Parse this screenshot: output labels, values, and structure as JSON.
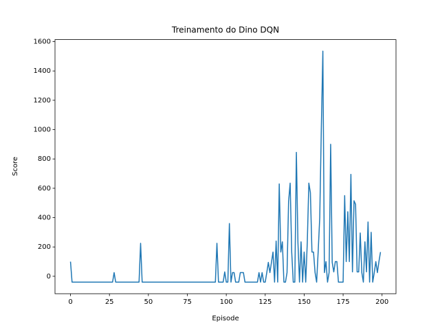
{
  "chart_data": {
    "type": "line",
    "title": "Treinamento do Dino DQN",
    "x_label": "Episode",
    "y_label": "Score",
    "xlim": [
      -9.95,
      208.95
    ],
    "ylim": [
      -118.75,
      1613.75
    ],
    "xticks": [
      0,
      25,
      50,
      75,
      100,
      125,
      150,
      175,
      200
    ],
    "yticks": [
      0,
      200,
      400,
      600,
      800,
      1000,
      1200,
      1400,
      1600
    ],
    "x": [
      0,
      1,
      2,
      3,
      4,
      5,
      6,
      7,
      8,
      9,
      10,
      11,
      12,
      13,
      14,
      15,
      16,
      17,
      18,
      19,
      20,
      21,
      22,
      23,
      24,
      25,
      26,
      27,
      28,
      29,
      30,
      31,
      32,
      33,
      34,
      35,
      36,
      37,
      38,
      39,
      40,
      41,
      42,
      43,
      44,
      45,
      46,
      47,
      48,
      49,
      50,
      51,
      52,
      53,
      54,
      55,
      56,
      57,
      58,
      59,
      60,
      61,
      62,
      63,
      64,
      65,
      66,
      67,
      68,
      69,
      70,
      71,
      72,
      73,
      74,
      75,
      76,
      77,
      78,
      79,
      80,
      81,
      82,
      83,
      84,
      85,
      86,
      87,
      88,
      89,
      90,
      91,
      92,
      93,
      94,
      95,
      96,
      97,
      98,
      99,
      100,
      101,
      102,
      103,
      104,
      105,
      106,
      107,
      108,
      109,
      110,
      111,
      112,
      113,
      114,
      115,
      116,
      117,
      118,
      119,
      120,
      121,
      122,
      123,
      124,
      125,
      126,
      127,
      128,
      129,
      130,
      131,
      132,
      133,
      134,
      135,
      136,
      137,
      138,
      139,
      140,
      141,
      142,
      143,
      144,
      145,
      146,
      147,
      148,
      149,
      150,
      151,
      152,
      153,
      154,
      155,
      156,
      157,
      158,
      159,
      160,
      161,
      162,
      163,
      164,
      165,
      166,
      167,
      168,
      169,
      170,
      171,
      172,
      173,
      174,
      175,
      176,
      177,
      178,
      179,
      180,
      181,
      182,
      183,
      184,
      185,
      186,
      187,
      188,
      189,
      190,
      191,
      192,
      193,
      194,
      195,
      196,
      197,
      198,
      199
    ],
    "series": [
      {
        "name": "Score",
        "color": "#1f77b4",
        "values": [
          100,
          -40,
          -40,
          -40,
          -40,
          -40,
          -40,
          -40,
          -40,
          -40,
          -40,
          -40,
          -40,
          -40,
          -40,
          -40,
          -40,
          -40,
          -40,
          -40,
          -40,
          -40,
          -40,
          -40,
          -40,
          -40,
          -40,
          -40,
          25,
          -40,
          -40,
          -40,
          -40,
          -40,
          -40,
          -40,
          -40,
          -40,
          -40,
          -40,
          -40,
          -40,
          -40,
          -40,
          -40,
          225,
          -40,
          -40,
          -40,
          -40,
          -40,
          -40,
          -40,
          -40,
          -40,
          -40,
          -40,
          -40,
          -40,
          -40,
          -40,
          -40,
          -40,
          -40,
          -40,
          -40,
          -40,
          -40,
          -40,
          -40,
          -40,
          -40,
          -40,
          -40,
          -40,
          -40,
          -40,
          -40,
          -40,
          -40,
          -40,
          -40,
          -40,
          -40,
          -40,
          -40,
          -40,
          -40,
          -40,
          -40,
          -40,
          -40,
          -40,
          -40,
          225,
          -40,
          -40,
          -40,
          -40,
          30,
          -40,
          -40,
          360,
          -40,
          25,
          25,
          -40,
          -40,
          -40,
          25,
          25,
          25,
          -40,
          -40,
          -40,
          -40,
          -40,
          -40,
          -40,
          -40,
          -40,
          25,
          -40,
          25,
          -40,
          -40,
          25,
          95,
          25,
          95,
          165,
          -40,
          240,
          -40,
          630,
          165,
          235,
          -40,
          -40,
          25,
          510,
          635,
          165,
          -40,
          -40,
          845,
          230,
          -40,
          235,
          -40,
          165,
          -40,
          230,
          635,
          570,
          165,
          165,
          25,
          -40,
          170,
          400,
          1000,
          1535,
          25,
          100,
          -40,
          25,
          900,
          95,
          30,
          100,
          100,
          -40,
          -40,
          -40,
          -40,
          550,
          100,
          440,
          100,
          695,
          30,
          515,
          490,
          30,
          30,
          295,
          25,
          -40,
          235,
          30,
          370,
          -40,
          300,
          -40,
          25,
          100,
          25,
          100,
          165
        ]
      }
    ]
  }
}
